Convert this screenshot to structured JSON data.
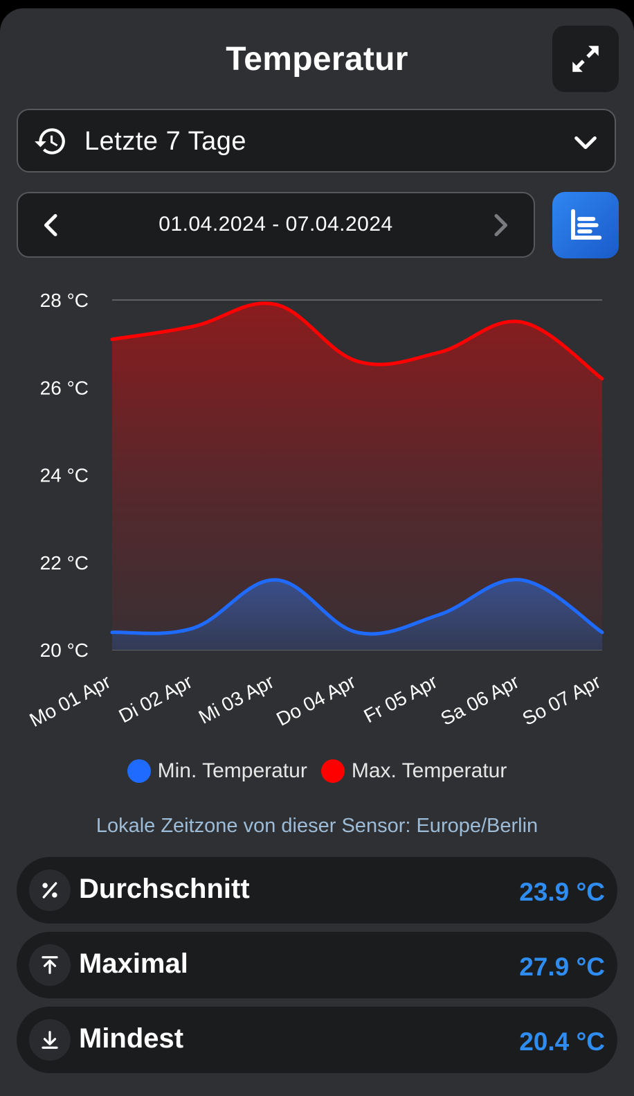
{
  "header": {
    "title": "Temperatur",
    "expand_icon": "expand-arrows-icon"
  },
  "range_select": {
    "icon": "history-icon",
    "selected": "Letzte 7 Tage",
    "chevron_icon": "chevron-down-icon"
  },
  "date_nav": {
    "prev_icon": "chevron-left-icon",
    "next_icon": "chevron-right-icon",
    "range": "01.04.2024 - 07.04.2024"
  },
  "chart_toggle": {
    "icon": "chart-list-icon",
    "color": "#2a7de8"
  },
  "chart_data": {
    "type": "area",
    "categories": [
      "Mo 01 Apr",
      "Di 02 Apr",
      "Mi 03 Apr",
      "Do 04 Apr",
      "Fr 05 Apr",
      "Sa 06 Apr",
      "So 07 Apr"
    ],
    "series": [
      {
        "name": "Min. Temperatur",
        "color": "#1f6bff",
        "values": [
          20.4,
          20.5,
          21.6,
          20.4,
          20.8,
          21.6,
          20.4
        ]
      },
      {
        "name": "Max. Temperatur",
        "color": "#ff0000",
        "values": [
          27.1,
          27.4,
          27.9,
          26.6,
          26.8,
          27.5,
          26.2
        ]
      }
    ],
    "y_ticks": [
      "20 °C",
      "22 °C",
      "24 °C",
      "26 °C",
      "28 °C"
    ],
    "y_tick_values": [
      20,
      22,
      24,
      26,
      28
    ],
    "ylim": [
      20,
      28
    ],
    "grid": true,
    "legend": "bottom"
  },
  "timezone_note": "Lokale Zeitzone von dieser Sensor: Europe/Berlin",
  "stats": [
    {
      "icon": "percent-icon",
      "label": "Durchschnitt",
      "value": "23.9 °C"
    },
    {
      "icon": "arrow-up-to-line-icon",
      "label": "Maximal",
      "value": "27.9 °C"
    },
    {
      "icon": "arrow-down-to-line-icon",
      "label": "Mindest",
      "value": "20.4 °C"
    }
  ],
  "value_color": "#2f8cf0"
}
